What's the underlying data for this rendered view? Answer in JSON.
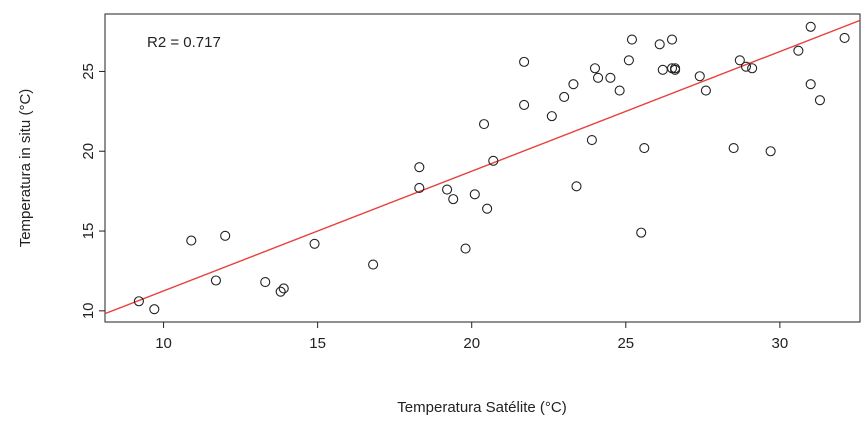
{
  "chart_data": {
    "type": "scatter",
    "title": "",
    "xlabel": "Temperatura Satélite (°C)",
    "ylabel": "Temperatura in situ (°C)",
    "xlim": [
      8.1,
      32.6
    ],
    "ylim": [
      9.3,
      28.6
    ],
    "x_ticks": [
      10,
      15,
      20,
      25,
      30
    ],
    "y_ticks": [
      10,
      15,
      20,
      25
    ],
    "grid": false,
    "annotation": "R2 = 0.717",
    "regression_line": {
      "color": "#e8413c",
      "intercept": 3.75,
      "slope": 0.75
    },
    "point_color": "#222222",
    "points": [
      [
        9.2,
        10.6
      ],
      [
        9.7,
        10.1
      ],
      [
        10.9,
        14.4
      ],
      [
        11.7,
        11.9
      ],
      [
        12.0,
        14.7
      ],
      [
        13.3,
        11.8
      ],
      [
        13.8,
        11.2
      ],
      [
        13.9,
        11.4
      ],
      [
        14.9,
        14.2
      ],
      [
        16.8,
        12.9
      ],
      [
        18.3,
        19.0
      ],
      [
        18.3,
        17.7
      ],
      [
        19.2,
        17.6
      ],
      [
        19.4,
        17.0
      ],
      [
        19.8,
        13.9
      ],
      [
        20.1,
        17.3
      ],
      [
        20.4,
        21.7
      ],
      [
        20.5,
        16.4
      ],
      [
        20.7,
        19.4
      ],
      [
        21.7,
        25.6
      ],
      [
        21.7,
        22.9
      ],
      [
        22.6,
        22.2
      ],
      [
        23.0,
        23.4
      ],
      [
        23.3,
        24.2
      ],
      [
        23.4,
        17.8
      ],
      [
        23.9,
        20.7
      ],
      [
        24.0,
        25.2
      ],
      [
        24.1,
        24.6
      ],
      [
        24.5,
        24.6
      ],
      [
        24.8,
        23.8
      ],
      [
        25.1,
        25.7
      ],
      [
        25.2,
        27.0
      ],
      [
        25.5,
        14.9
      ],
      [
        25.6,
        20.2
      ],
      [
        26.1,
        26.7
      ],
      [
        26.2,
        25.1
      ],
      [
        26.5,
        27.0
      ],
      [
        26.5,
        25.2
      ],
      [
        26.6,
        25.2
      ],
      [
        26.6,
        25.1
      ],
      [
        27.4,
        24.7
      ],
      [
        27.6,
        23.8
      ],
      [
        28.5,
        20.2
      ],
      [
        28.7,
        25.7
      ],
      [
        28.9,
        25.3
      ],
      [
        29.1,
        25.2
      ],
      [
        29.7,
        20.0
      ],
      [
        30.6,
        26.3
      ],
      [
        31.0,
        27.8
      ],
      [
        31.0,
        24.2
      ],
      [
        31.3,
        23.2
      ],
      [
        32.1,
        27.1
      ]
    ]
  }
}
